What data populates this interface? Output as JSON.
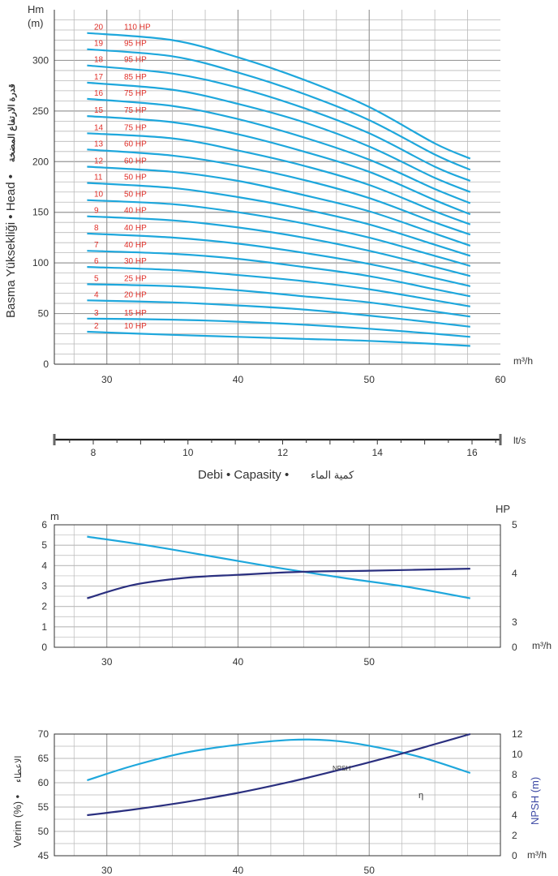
{
  "colors": {
    "curve": "#1ea7dc",
    "power": "#2a2f7f",
    "grid": "#b9b9b9",
    "axis": "#333333",
    "stage_label": "#e0312a",
    "npsh_axis_title": "#3b47a3"
  },
  "chart_data": [
    {
      "type": "line",
      "role": "head-curves",
      "title": "",
      "y_unit": "Hm",
      "y_unit2": "(m)",
      "ylabel": "Basma Yüksekliği • Head •",
      "ylabel_arabic": "قدرة الارتفاع المضخة",
      "xlabel": "m³/h",
      "xlim": [
        26,
        60
      ],
      "ylim": [
        0,
        350
      ],
      "x_ticks": [
        30,
        40,
        50,
        60
      ],
      "y_ticks": [
        0,
        50,
        100,
        150,
        200,
        250,
        300
      ],
      "x_start": 28.5,
      "x_end": 57.7,
      "series": [
        {
          "name": "2",
          "power": "10 HP",
          "values": [
            [
              28.5,
              32
            ],
            [
              35,
              29
            ],
            [
              40,
              27
            ],
            [
              45,
              25
            ],
            [
              50,
              23
            ],
            [
              55,
              20
            ],
            [
              57.7,
              18
            ]
          ]
        },
        {
          "name": "3",
          "power": "15 HP",
          "values": [
            [
              28.5,
              45
            ],
            [
              35,
              44
            ],
            [
              40,
              42
            ],
            [
              45,
              39
            ],
            [
              50,
              35
            ],
            [
              55,
              30
            ],
            [
              57.7,
              27
            ]
          ]
        },
        {
          "name": "4",
          "power": "20 HP",
          "values": [
            [
              28.5,
              63
            ],
            [
              35,
              61
            ],
            [
              40,
              58
            ],
            [
              45,
              54
            ],
            [
              50,
              48
            ],
            [
              55,
              41
            ],
            [
              57.7,
              37
            ]
          ]
        },
        {
          "name": "5",
          "power": "25 HP",
          "values": [
            [
              28.5,
              79
            ],
            [
              35,
              77
            ],
            [
              40,
              73
            ],
            [
              45,
              67
            ],
            [
              50,
              61
            ],
            [
              55,
              52
            ],
            [
              57.7,
              47
            ]
          ]
        },
        {
          "name": "6",
          "power": "30 HP",
          "values": [
            [
              28.5,
              96
            ],
            [
              35,
              93
            ],
            [
              40,
              88
            ],
            [
              45,
              82
            ],
            [
              50,
              74
            ],
            [
              55,
              63
            ],
            [
              57.7,
              57
            ]
          ]
        },
        {
          "name": "7",
          "power": "40 HP",
          "values": [
            [
              28.5,
              112
            ],
            [
              35,
              109
            ],
            [
              40,
              104
            ],
            [
              45,
              96
            ],
            [
              50,
              87
            ],
            [
              55,
              74
            ],
            [
              57.7,
              67
            ]
          ]
        },
        {
          "name": "8",
          "power": "40 HP",
          "values": [
            [
              28.5,
              129
            ],
            [
              35,
              125
            ],
            [
              40,
              119
            ],
            [
              45,
              110
            ],
            [
              50,
              99
            ],
            [
              55,
              85
            ],
            [
              57.7,
              77
            ]
          ]
        },
        {
          "name": "9",
          "power": "40 HP",
          "values": [
            [
              28.5,
              146
            ],
            [
              35,
              142
            ],
            [
              40,
              135
            ],
            [
              45,
              125
            ],
            [
              50,
              112
            ],
            [
              55,
              96
            ],
            [
              57.7,
              87
            ]
          ]
        },
        {
          "name": "10",
          "power": "50 HP",
          "values": [
            [
              28.5,
              162
            ],
            [
              35,
              158
            ],
            [
              40,
              150
            ],
            [
              45,
              139
            ],
            [
              50,
              125
            ],
            [
              55,
              107
            ],
            [
              57.7,
              97
            ]
          ]
        },
        {
          "name": "11",
          "power": "50 HP",
          "values": [
            [
              28.5,
              179
            ],
            [
              35,
              174
            ],
            [
              40,
              165
            ],
            [
              45,
              153
            ],
            [
              50,
              138
            ],
            [
              55,
              118
            ],
            [
              57.7,
              107
            ]
          ]
        },
        {
          "name": "12",
          "power": "60 HP",
          "values": [
            [
              28.5,
              195
            ],
            [
              35,
              190
            ],
            [
              40,
              181
            ],
            [
              45,
              167
            ],
            [
              50,
              151
            ],
            [
              55,
              129
            ],
            [
              57.7,
              117
            ]
          ]
        },
        {
          "name": "13",
          "power": "60 HP",
          "values": [
            [
              28.5,
              212
            ],
            [
              35,
              206
            ],
            [
              40,
              196
            ],
            [
              45,
              182
            ],
            [
              50,
              164
            ],
            [
              55,
              140
            ],
            [
              57.7,
              128
            ]
          ]
        },
        {
          "name": "14",
          "power": "75 HP",
          "values": [
            [
              28.5,
              228
            ],
            [
              35,
              223
            ],
            [
              40,
              211
            ],
            [
              45,
              196
            ],
            [
              50,
              177
            ],
            [
              55,
              151
            ],
            [
              57.7,
              138
            ]
          ]
        },
        {
          "name": "15",
          "power": "75 HP",
          "values": [
            [
              28.5,
              245
            ],
            [
              35,
              239
            ],
            [
              40,
              227
            ],
            [
              45,
              210
            ],
            [
              50,
              190
            ],
            [
              55,
              162
            ],
            [
              57.7,
              148
            ]
          ]
        },
        {
          "name": "16",
          "power": "75 HP",
          "values": [
            [
              28.5,
              262
            ],
            [
              35,
              255
            ],
            [
              40,
              242
            ],
            [
              45,
              224
            ],
            [
              50,
              202
            ],
            [
              55,
              173
            ],
            [
              57.7,
              159
            ]
          ]
        },
        {
          "name": "17",
          "power": "85 HP",
          "values": [
            [
              28.5,
              278
            ],
            [
              35,
              271
            ],
            [
              40,
              257
            ],
            [
              45,
              239
            ],
            [
              50,
              215
            ],
            [
              55,
              184
            ],
            [
              57.7,
              170
            ]
          ]
        },
        {
          "name": "18",
          "power": "95 HP",
          "values": [
            [
              28.5,
              295
            ],
            [
              35,
              287
            ],
            [
              40,
              273
            ],
            [
              45,
              253
            ],
            [
              50,
              228
            ],
            [
              55,
              195
            ],
            [
              57.7,
              181
            ]
          ]
        },
        {
          "name": "19",
          "power": "95 HP",
          "values": [
            [
              28.5,
              311
            ],
            [
              35,
              304
            ],
            [
              40,
              288
            ],
            [
              45,
              267
            ],
            [
              50,
              241
            ],
            [
              55,
              207
            ],
            [
              57.7,
              192
            ]
          ]
        },
        {
          "name": "20",
          "power": "110 HP",
          "values": [
            [
              28.5,
              327
            ],
            [
              35,
              320
            ],
            [
              40,
              303
            ],
            [
              45,
              281
            ],
            [
              50,
              254
            ],
            [
              55,
              218
            ],
            [
              57.7,
              203
            ]
          ]
        }
      ]
    },
    {
      "type": "line",
      "role": "flow-scale",
      "title": "",
      "xlabel": "Debi • Capasity •",
      "xlabel_arabic": "كمية الماء",
      "unit": "lt/s",
      "x_ticks": [
        8,
        10,
        12,
        14,
        16
      ]
    },
    {
      "type": "line",
      "role": "npsh-power",
      "title": "",
      "ylabel_left": "m",
      "ylabel_right": "HP",
      "xlabel": "m³/h",
      "xlim": [
        26,
        60
      ],
      "ylim_left": [
        0,
        6
      ],
      "ylim_right": [
        0,
        5
      ],
      "x_ticks": [
        30,
        40,
        50
      ],
      "y_ticks_left": [
        0,
        1,
        2,
        3,
        4,
        5,
        6
      ],
      "y_ticks_right": [
        0,
        3,
        4,
        5
      ],
      "series": [
        {
          "values": [
            [
              28.5,
              5.42
            ],
            [
              33,
              5.0
            ],
            [
              38,
              4.45
            ],
            [
              43,
              3.9
            ],
            [
              48,
              3.4
            ],
            [
              53,
              2.95
            ],
            [
              57.7,
              2.4
            ]
          ]
        },
        {
          "values": [
            [
              28.5,
              2.4
            ],
            [
              32,
              3.05
            ],
            [
              36,
              3.4
            ],
            [
              40,
              3.55
            ],
            [
              45,
              3.7
            ],
            [
              50,
              3.75
            ],
            [
              57.7,
              3.85
            ]
          ]
        }
      ]
    },
    {
      "type": "line",
      "role": "efficiency-npsh",
      "title": "",
      "ylabel_left": "Verim (%) •",
      "ylabel_left_arabic": "الاعطاء",
      "ylabel_right": "NPSH (m)",
      "xlabel": "m³/h",
      "xlim": [
        26,
        60
      ],
      "ylim_left": [
        45,
        70
      ],
      "ylim_right": [
        0,
        12
      ],
      "x_ticks": [
        30,
        40,
        50
      ],
      "y_ticks_left": [
        45,
        50,
        55,
        60,
        65,
        70
      ],
      "y_ticks_right": [
        0,
        2,
        4,
        6,
        8,
        10,
        12
      ],
      "series": [
        {
          "name": "η",
          "values": [
            [
              28.5,
              60.5
            ],
            [
              32,
              63.5
            ],
            [
              36,
              66.2
            ],
            [
              40,
              67.8
            ],
            [
              44,
              68.8
            ],
            [
              47,
              68.7
            ],
            [
              50,
              67.6
            ],
            [
              54,
              65.2
            ],
            [
              57.7,
              62
            ]
          ]
        },
        {
          "name": "NPSH",
          "values": [
            [
              28.5,
              4.0
            ],
            [
              32,
              4.55
            ],
            [
              36,
              5.3
            ],
            [
              40,
              6.2
            ],
            [
              44,
              7.3
            ],
            [
              48,
              8.55
            ],
            [
              52,
              9.9
            ],
            [
              55,
              11.0
            ],
            [
              57.7,
              12.0
            ]
          ]
        }
      ]
    }
  ]
}
